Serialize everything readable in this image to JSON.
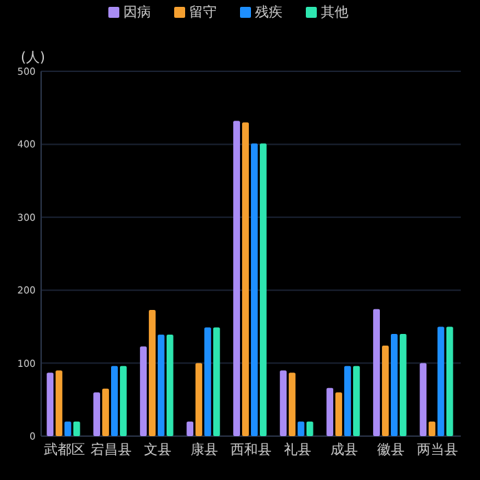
{
  "chart_data": {
    "type": "bar",
    "ylabel": "(人)",
    "categories": [
      "武都区",
      "宕昌县",
      "文县",
      "康县",
      "西和县",
      "礼县",
      "成县",
      "徽县",
      "两当县"
    ],
    "series": [
      {
        "name": "因病",
        "color": "#a98cf5",
        "values": [
          87,
          60,
          123,
          20,
          432,
          90,
          66,
          174,
          100
        ]
      },
      {
        "name": "留守",
        "color": "#f5a030",
        "values": [
          90,
          65,
          173,
          100,
          430,
          87,
          60,
          124,
          20
        ]
      },
      {
        "name": "残疾",
        "color": "#1e8fff",
        "values": [
          20,
          96,
          139,
          149,
          401,
          20,
          96,
          140,
          150
        ]
      },
      {
        "name": "其他",
        "color": "#2ee6b0",
        "values": [
          20,
          96,
          139,
          149,
          401,
          20,
          96,
          140,
          150
        ]
      }
    ],
    "ylim": [
      0,
      500
    ],
    "yticks": [
      0,
      100,
      200,
      300,
      400,
      500
    ],
    "grid": "y",
    "legend": "top"
  }
}
